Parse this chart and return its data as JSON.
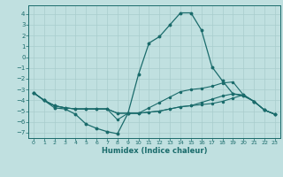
{
  "xlabel": "Humidex (Indice chaleur)",
  "bg_color": "#c0e0e0",
  "line_color": "#1a6b6b",
  "grid_color": "#a8cccc",
  "xlim": [
    -0.5,
    23.5
  ],
  "ylim": [
    -7.5,
    4.8
  ],
  "yticks": [
    -7,
    -6,
    -5,
    -4,
    -3,
    -2,
    -1,
    0,
    1,
    2,
    3,
    4
  ],
  "xticks": [
    0,
    1,
    2,
    3,
    4,
    5,
    6,
    7,
    8,
    9,
    10,
    11,
    12,
    13,
    14,
    15,
    16,
    17,
    18,
    19,
    20,
    21,
    22,
    23
  ],
  "line1_x": [
    0,
    1,
    2,
    3,
    4,
    5,
    6,
    7,
    8,
    9,
    10,
    11,
    12,
    13,
    14,
    15,
    16,
    17,
    18,
    19,
    20,
    21,
    22,
    23
  ],
  "line1_y": [
    -3.3,
    -4.0,
    -4.7,
    -4.8,
    -5.3,
    -6.2,
    -6.6,
    -6.9,
    -7.1,
    -5.2,
    -1.6,
    1.3,
    1.9,
    3.0,
    4.1,
    4.1,
    2.5,
    -0.9,
    -2.2,
    -3.4,
    -3.6,
    -4.1,
    -4.9,
    -5.3
  ],
  "line2_x": [
    0,
    1,
    2,
    3,
    4,
    5,
    6,
    7,
    8,
    9,
    10,
    11,
    12,
    13,
    14,
    15,
    16,
    17,
    18,
    19,
    20,
    21,
    22,
    23
  ],
  "line2_y": [
    -3.3,
    -4.0,
    -4.5,
    -4.7,
    -4.8,
    -4.8,
    -4.8,
    -4.8,
    -5.2,
    -5.2,
    -5.2,
    -5.1,
    -5.0,
    -4.8,
    -4.6,
    -4.5,
    -4.4,
    -4.3,
    -4.1,
    -3.8,
    -3.5,
    -4.1,
    -4.9,
    -5.3
  ],
  "line3_x": [
    0,
    1,
    2,
    3,
    4,
    5,
    6,
    7,
    8,
    9,
    10,
    11,
    12,
    13,
    14,
    15,
    16,
    17,
    18,
    19,
    20,
    21,
    22,
    23
  ],
  "line3_y": [
    -3.3,
    -4.0,
    -4.5,
    -4.7,
    -4.8,
    -4.8,
    -4.8,
    -4.8,
    -5.2,
    -5.2,
    -5.2,
    -4.7,
    -4.2,
    -3.7,
    -3.2,
    -3.0,
    -2.9,
    -2.7,
    -2.4,
    -2.3,
    -3.5,
    -4.1,
    -4.9,
    -5.3
  ],
  "line4_x": [
    0,
    1,
    2,
    3,
    4,
    5,
    6,
    7,
    8,
    9,
    10,
    11,
    12,
    13,
    14,
    15,
    16,
    17,
    18,
    19,
    20,
    21,
    22,
    23
  ],
  "line4_y": [
    -3.3,
    -4.0,
    -4.5,
    -4.7,
    -4.8,
    -4.8,
    -4.8,
    -4.8,
    -5.8,
    -5.2,
    -5.2,
    -5.1,
    -5.0,
    -4.8,
    -4.6,
    -4.5,
    -4.2,
    -3.9,
    -3.6,
    -3.4,
    -3.5,
    -4.1,
    -4.9,
    -5.3
  ]
}
